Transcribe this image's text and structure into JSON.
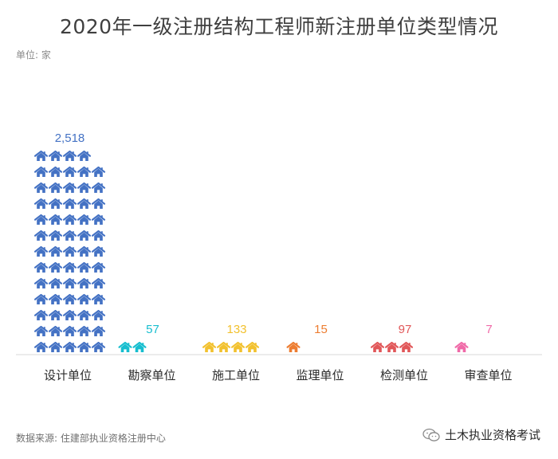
{
  "title": "2020年一级注册结构工程师新注册单位类型情况",
  "unit_label": "单位: 家",
  "source": "数据来源: 住建部执业资格注册中心",
  "watermark": "土木执业资格考试",
  "chart_data": {
    "type": "bar",
    "categories": [
      "设计单位",
      "勘察单位",
      "施工单位",
      "监理单位",
      "检测单位",
      "审查单位"
    ],
    "values": [
      2518,
      57,
      133,
      15,
      97,
      7
    ],
    "value_labels": [
      "2,518",
      "57",
      "133",
      "15",
      "97",
      "7"
    ],
    "icon_counts": [
      64,
      2,
      4,
      1,
      3,
      1
    ],
    "colors": [
      "#4472c4",
      "#17becf",
      "#f2c12e",
      "#ed7d31",
      "#e15759",
      "#f06aa8"
    ],
    "icon": "house-icon",
    "legend": "none",
    "grid": false
  }
}
